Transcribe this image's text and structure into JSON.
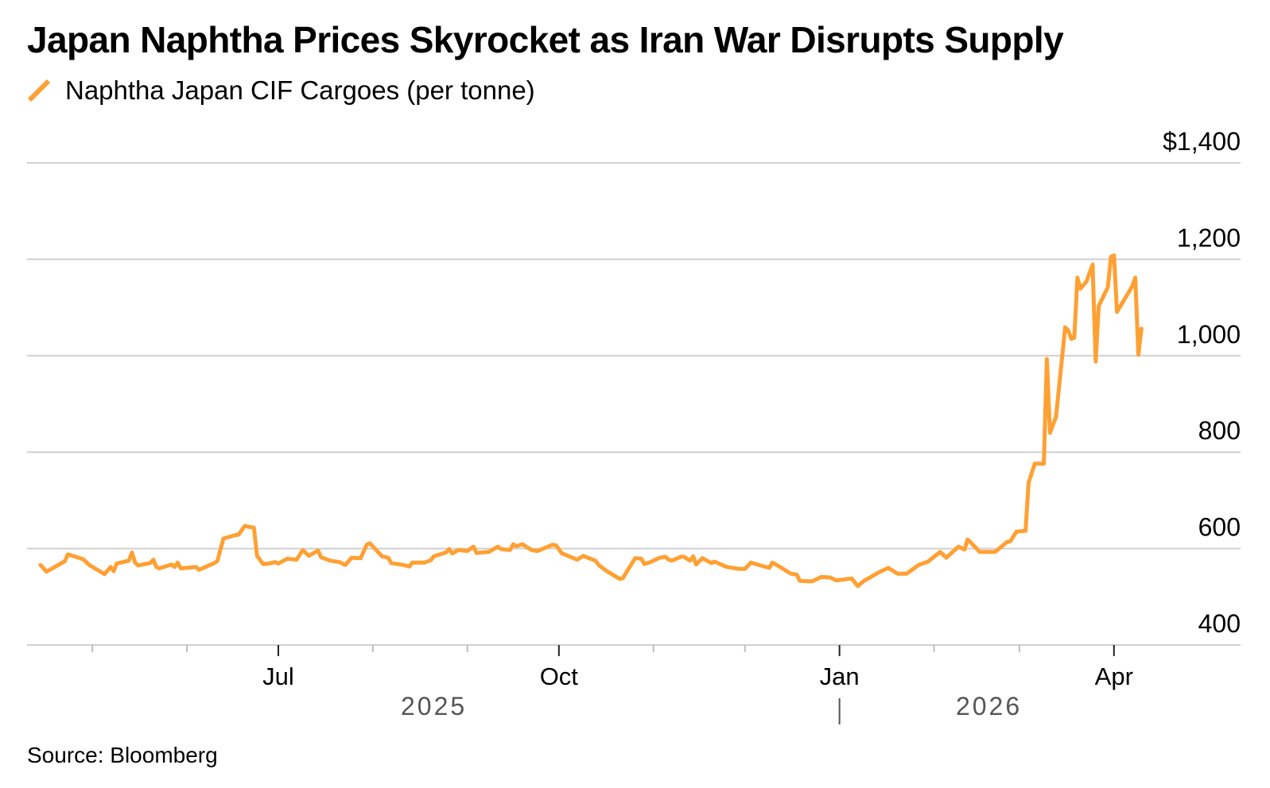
{
  "title": "Japan Naphtha Prices Skyrocket as Iran War Disrupts Supply",
  "source": "Source: Bloomberg",
  "colors": {
    "series": "#FFA033",
    "grid": "#D0D0D0",
    "year_label": "#555555"
  },
  "chart_data": {
    "type": "line",
    "title": "Japan Naphtha Prices Skyrocket as Iran War Disrupts Supply",
    "xlabel": "",
    "ylabel": "",
    "x_unit": "days since 2025-01-01",
    "xlim": [
      94,
      495
    ],
    "ylim": [
      400,
      1400
    ],
    "y_ticks": [
      400,
      600,
      800,
      1000,
      1200,
      1400
    ],
    "y_tick_labels": [
      "400",
      "600",
      "800",
      "1,000",
      "1,200",
      "$1,400"
    ],
    "x_ticks_major": [
      {
        "day": 181,
        "label": "Jul"
      },
      {
        "day": 273,
        "label": "Oct"
      },
      {
        "day": 365,
        "label": "Jan"
      },
      {
        "day": 455,
        "label": "Apr"
      }
    ],
    "x_ticks_minor": [
      120,
      151,
      212,
      243,
      304,
      334,
      396,
      424
    ],
    "year_labels": [
      {
        "label": "2025",
        "center_day": 232
      },
      {
        "label": "2026",
        "center_day": 414
      }
    ],
    "year_divider_day": 365,
    "grid": true,
    "legend": "top-left",
    "series": [
      {
        "name": "Naphtha Japan CIF Cargoes (per tonne)",
        "days": [
          103,
          105,
          111,
          112,
          114,
          117,
          119,
          124,
          126,
          127,
          128,
          132,
          133,
          134,
          135,
          139,
          140,
          141,
          142,
          146,
          147,
          148,
          149,
          154,
          155,
          160,
          161,
          163,
          167,
          168,
          170,
          173,
          174,
          176,
          178,
          180,
          181,
          184,
          187,
          189,
          191,
          194,
          195,
          198,
          201,
          203,
          205,
          208,
          210,
          211,
          215,
          217,
          218,
          222,
          224,
          225,
          229,
          231,
          232,
          236,
          237,
          238,
          240,
          243,
          245,
          246,
          250,
          253,
          254,
          257,
          258,
          259,
          261,
          264,
          266,
          271,
          272,
          274,
          279,
          281,
          282,
          285,
          286,
          289,
          293,
          294,
          296,
          298,
          300,
          301,
          303,
          306,
          308,
          309,
          310,
          313,
          314,
          316,
          317,
          318,
          320,
          323,
          324,
          328,
          329,
          332,
          334,
          336,
          338,
          342,
          343,
          346,
          349,
          351,
          352,
          356,
          359,
          362,
          364,
          369,
          371,
          373,
          378,
          381,
          384,
          387,
          391,
          394,
          398,
          400,
          404,
          406,
          407,
          408,
          411,
          416,
          420,
          421,
          423,
          426,
          427,
          429,
          432,
          433,
          434,
          436,
          439,
          440,
          441,
          442,
          443,
          444,
          446,
          448,
          449,
          450,
          453,
          454,
          455,
          456,
          461,
          462,
          463,
          464
        ],
        "values": [
          566,
          552,
          574,
          588,
          584,
          578,
          566,
          547,
          562,
          553,
          569,
          575,
          592,
          571,
          565,
          570,
          577,
          562,
          559,
          567,
          562,
          571,
          559,
          562,
          556,
          570,
          574,
          621,
          628,
          629,
          647,
          643,
          585,
          568,
          569,
          572,
          569,
          579,
          577,
          597,
          585,
          596,
          582,
          575,
          572,
          566,
          581,
          580,
          608,
          611,
          584,
          581,
          570,
          566,
          563,
          571,
          571,
          576,
          584,
          592,
          599,
          590,
          597,
          595,
          604,
          591,
          593,
          604,
          599,
          597,
          609,
          605,
          609,
          597,
          595,
          608,
          607,
          590,
          577,
          585,
          582,
          575,
          566,
          552,
          537,
          539,
          560,
          580,
          579,
          568,
          572,
          581,
          583,
          577,
          575,
          583,
          583,
          575,
          584,
          567,
          580,
          570,
          573,
          562,
          561,
          558,
          558,
          571,
          567,
          560,
          571,
          560,
          548,
          546,
          533,
          532,
          541,
          540,
          534,
          538,
          522,
          533,
          551,
          560,
          548,
          548,
          566,
          573,
          593,
          581,
          604,
          598,
          619,
          613,
          593,
          593,
          614,
          615,
          635,
          637,
          736,
          776,
          776,
          993,
          840,
          873,
          1059,
          1052,
          1035,
          1037,
          1162,
          1139,
          1154,
          1189,
          988,
          1103,
          1142,
          1205,
          1208,
          1091,
          1144,
          1162,
          1002,
          1056,
          1046
        ]
      }
    ]
  }
}
